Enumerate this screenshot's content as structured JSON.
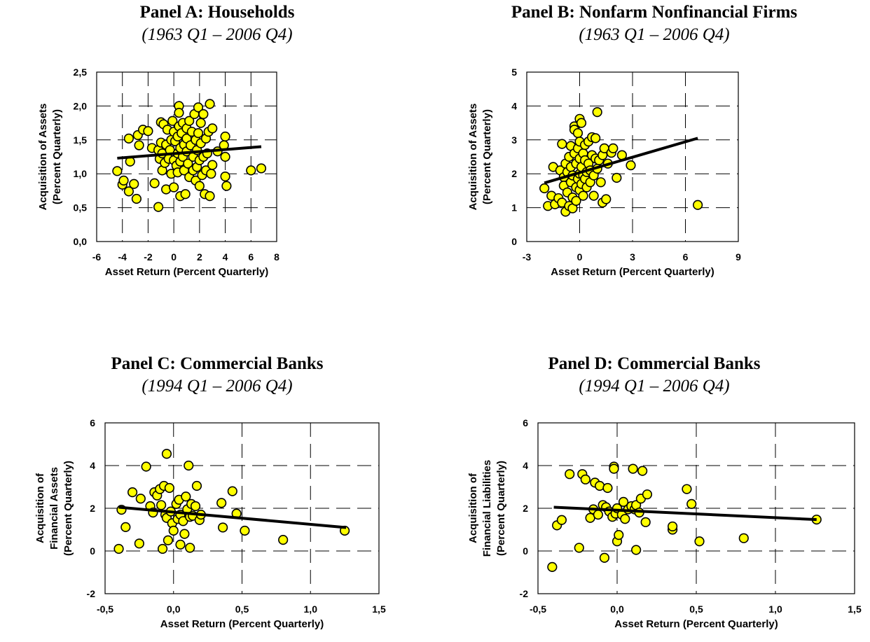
{
  "chart_data": [
    {
      "type": "scatter",
      "title": "Panel A: Households",
      "subtitle": "(1963 Q1 – 2006 Q4)",
      "xlabel": "Asset Return (Percent Quarterly)",
      "ylabel": [
        "Acquisition of Assets",
        "(Percent Quarterly)"
      ],
      "xlim": [
        -6,
        8
      ],
      "ylim": [
        0,
        2.5
      ],
      "xticks": [
        -6,
        -4,
        -2,
        0,
        2,
        4,
        6,
        8
      ],
      "yticks": [
        0,
        0.5,
        1,
        1.5,
        2,
        2.5
      ],
      "xtick_labels": [
        "-6",
        "-4",
        "-2",
        "0",
        "2",
        "4",
        "6",
        "8"
      ],
      "ytick_labels": [
        "0,0",
        "0,5",
        "1,0",
        "1,5",
        "2,0",
        "2,5"
      ],
      "grid": true,
      "trend": [
        [
          -4.4,
          1.23
        ],
        [
          6.8,
          1.4
        ]
      ],
      "points": [
        [
          -4.4,
          1.04
        ],
        [
          -4.0,
          0.84
        ],
        [
          -3.9,
          0.9
        ],
        [
          -3.5,
          1.52
        ],
        [
          -3.4,
          1.18
        ],
        [
          -3.5,
          0.74
        ],
        [
          -3.1,
          0.85
        ],
        [
          -2.9,
          0.63
        ],
        [
          -2.8,
          1.57
        ],
        [
          -2.7,
          1.42
        ],
        [
          -2.4,
          1.65
        ],
        [
          -2.0,
          1.63
        ],
        [
          -1.7,
          1.38
        ],
        [
          -1.5,
          0.86
        ],
        [
          -1.2,
          0.51
        ],
        [
          -1.2,
          1.35
        ],
        [
          -1.1,
          1.22
        ],
        [
          -1.0,
          1.46
        ],
        [
          -1.0,
          1.76
        ],
        [
          -0.9,
          1.3
        ],
        [
          -0.9,
          1.05
        ],
        [
          -0.8,
          1.73
        ],
        [
          -0.7,
          1.16
        ],
        [
          -0.6,
          0.77
        ],
        [
          -0.6,
          1.43
        ],
        [
          -0.5,
          1.65
        ],
        [
          -0.4,
          1.22
        ],
        [
          -0.3,
          1.35
        ],
        [
          -0.2,
          1.5
        ],
        [
          -0.2,
          1.0
        ],
        [
          -0.1,
          1.78
        ],
        [
          0.0,
          1.2
        ],
        [
          0.0,
          1.62
        ],
        [
          0.0,
          0.8
        ],
        [
          0.1,
          1.48
        ],
        [
          0.2,
          1.12
        ],
        [
          0.3,
          1.55
        ],
        [
          0.3,
          1.3
        ],
        [
          0.3,
          1.02
        ],
        [
          0.4,
          1.7
        ],
        [
          0.4,
          2.0
        ],
        [
          0.4,
          1.9
        ],
        [
          0.5,
          1.38
        ],
        [
          0.5,
          1.18
        ],
        [
          0.5,
          0.67
        ],
        [
          0.6,
          1.6
        ],
        [
          0.7,
          1.75
        ],
        [
          0.7,
          1.25
        ],
        [
          0.8,
          1.43
        ],
        [
          0.8,
          1.05
        ],
        [
          0.9,
          0.7
        ],
        [
          1.0,
          1.67
        ],
        [
          1.0,
          1.33
        ],
        [
          1.0,
          1.52
        ],
        [
          1.1,
          1.15
        ],
        [
          1.2,
          1.78
        ],
        [
          1.2,
          0.95
        ],
        [
          1.3,
          1.42
        ],
        [
          1.4,
          1.62
        ],
        [
          1.5,
          1.25
        ],
        [
          1.5,
          1.05
        ],
        [
          1.6,
          1.88
        ],
        [
          1.7,
          1.5
        ],
        [
          1.7,
          0.9
        ],
        [
          1.8,
          1.35
        ],
        [
          1.8,
          1.1
        ],
        [
          1.9,
          1.98
        ],
        [
          1.9,
          1.6
        ],
        [
          2.0,
          1.2
        ],
        [
          2.0,
          0.82
        ],
        [
          2.1,
          1.75
        ],
        [
          2.1,
          1.45
        ],
        [
          2.2,
          0.98
        ],
        [
          2.3,
          1.88
        ],
        [
          2.3,
          1.25
        ],
        [
          2.4,
          0.7
        ],
        [
          2.5,
          1.52
        ],
        [
          2.5,
          1.05
        ],
        [
          2.6,
          1.3
        ],
        [
          2.7,
          1.62
        ],
        [
          2.8,
          2.03
        ],
        [
          2.8,
          0.67
        ],
        [
          2.9,
          1.0
        ],
        [
          3.0,
          1.67
        ],
        [
          3.0,
          1.13
        ],
        [
          3.4,
          1.33
        ],
        [
          3.9,
          1.42
        ],
        [
          4.0,
          1.55
        ],
        [
          4.0,
          1.25
        ],
        [
          4.0,
          0.96
        ],
        [
          4.1,
          0.82
        ],
        [
          6.0,
          1.05
        ],
        [
          6.8,
          1.08
        ]
      ]
    },
    {
      "type": "scatter",
      "title": "Panel B: Nonfarm Nonfinancial Firms",
      "subtitle": "(1963 Q1 – 2006 Q4)",
      "xlabel": "Asset Return (Percent Quarterly)",
      "ylabel": [
        "Acquisition of Assets",
        "(Percent Quarterly)"
      ],
      "xlim": [
        -3,
        9
      ],
      "ylim": [
        0,
        5
      ],
      "xticks": [
        -3,
        0,
        3,
        6,
        9
      ],
      "yticks": [
        0,
        1,
        2,
        3,
        4,
        5
      ],
      "xtick_labels": [
        "-3",
        "0",
        "3",
        "6",
        "9"
      ],
      "ytick_labels": [
        "0",
        "1",
        "2",
        "3",
        "4",
        "5"
      ],
      "grid": true,
      "trend": [
        [
          -2.0,
          1.73
        ],
        [
          6.7,
          3.05
        ]
      ],
      "points": [
        [
          -2.0,
          1.57
        ],
        [
          -1.8,
          1.05
        ],
        [
          -1.6,
          1.35
        ],
        [
          -1.5,
          2.2
        ],
        [
          -1.4,
          1.1
        ],
        [
          -1.2,
          1.28
        ],
        [
          -1.1,
          2.1
        ],
        [
          -1.0,
          2.88
        ],
        [
          -1.0,
          1.15
        ],
        [
          -0.9,
          1.9
        ],
        [
          -0.9,
          1.65
        ],
        [
          -0.8,
          2.3
        ],
        [
          -0.8,
          0.88
        ],
        [
          -0.7,
          2.05
        ],
        [
          -0.7,
          1.45
        ],
        [
          -0.6,
          2.5
        ],
        [
          -0.6,
          1.05
        ],
        [
          -0.5,
          2.82
        ],
        [
          -0.5,
          2.2
        ],
        [
          -0.5,
          1.75
        ],
        [
          -0.4,
          0.98
        ],
        [
          -0.4,
          1.3
        ],
        [
          -0.4,
          1.95
        ],
        [
          -0.3,
          3.4
        ],
        [
          -0.3,
          3.3
        ],
        [
          -0.3,
          2.6
        ],
        [
          -0.2,
          1.6
        ],
        [
          -0.2,
          2.3
        ],
        [
          -0.2,
          1.2
        ],
        [
          -0.1,
          3.2
        ],
        [
          -0.1,
          2.75
        ],
        [
          -0.1,
          1.85
        ],
        [
          0.0,
          3.62
        ],
        [
          0.0,
          2.95
        ],
        [
          0.0,
          2.45
        ],
        [
          0.0,
          2.0
        ],
        [
          0.0,
          1.52
        ],
        [
          0.1,
          3.5
        ],
        [
          0.1,
          2.2
        ],
        [
          0.1,
          1.7
        ],
        [
          0.2,
          2.6
        ],
        [
          0.2,
          1.95
        ],
        [
          0.2,
          1.35
        ],
        [
          0.3,
          2.85
        ],
        [
          0.3,
          2.4
        ],
        [
          0.3,
          1.85
        ],
        [
          0.4,
          2.05
        ],
        [
          0.4,
          1.6
        ],
        [
          0.5,
          2.95
        ],
        [
          0.5,
          2.3
        ],
        [
          0.6,
          2.1
        ],
        [
          0.6,
          1.75
        ],
        [
          0.7,
          3.08
        ],
        [
          0.7,
          2.55
        ],
        [
          0.8,
          1.95
        ],
        [
          0.8,
          1.35
        ],
        [
          0.9,
          3.05
        ],
        [
          0.9,
          2.45
        ],
        [
          1.0,
          3.82
        ],
        [
          1.0,
          2.15
        ],
        [
          1.1,
          2.4
        ],
        [
          1.2,
          1.75
        ],
        [
          1.3,
          2.55
        ],
        [
          1.3,
          1.15
        ],
        [
          1.4,
          2.75
        ],
        [
          1.5,
          1.25
        ],
        [
          1.6,
          2.3
        ],
        [
          1.8,
          2.62
        ],
        [
          1.9,
          2.75
        ],
        [
          2.1,
          1.88
        ],
        [
          2.4,
          2.55
        ],
        [
          2.9,
          2.25
        ],
        [
          6.7,
          1.08
        ]
      ]
    },
    {
      "type": "scatter",
      "title": "Panel C: Commercial Banks",
      "subtitle": "(1994 Q1 – 2006 Q4)",
      "xlabel": "Asset Return (Percent Quarterly)",
      "ylabel": [
        "Acquisition of",
        "Financial Assets",
        "(Percent Quarterly)"
      ],
      "xlim": [
        -0.5,
        1.5
      ],
      "ylim": [
        -2,
        6
      ],
      "xticks": [
        -0.5,
        0,
        0.5,
        1,
        1.5
      ],
      "yticks": [
        -2,
        0,
        2,
        4,
        6
      ],
      "xtick_labels": [
        "-0,5",
        "0,0",
        "0,5",
        "1,0",
        "1,5"
      ],
      "ytick_labels": [
        "-2",
        "0",
        "2",
        "4",
        "6"
      ],
      "grid": true,
      "trend": [
        [
          -0.4,
          2.05
        ],
        [
          1.26,
          1.1
        ]
      ],
      "points": [
        [
          -0.4,
          0.1
        ],
        [
          -0.38,
          1.93
        ],
        [
          -0.35,
          1.12
        ],
        [
          -0.3,
          2.75
        ],
        [
          -0.25,
          0.35
        ],
        [
          -0.24,
          2.45
        ],
        [
          -0.2,
          3.95
        ],
        [
          -0.17,
          2.1
        ],
        [
          -0.15,
          1.8
        ],
        [
          -0.14,
          2.75
        ],
        [
          -0.12,
          2.6
        ],
        [
          -0.1,
          2.9
        ],
        [
          -0.09,
          2.15
        ],
        [
          -0.08,
          0.1
        ],
        [
          -0.07,
          3.05
        ],
        [
          -0.06,
          1.7
        ],
        [
          -0.05,
          4.55
        ],
        [
          -0.05,
          1.55
        ],
        [
          -0.04,
          0.5
        ],
        [
          -0.03,
          2.95
        ],
        [
          -0.02,
          1.85
        ],
        [
          -0.01,
          1.3
        ],
        [
          0.0,
          0.95
        ],
        [
          0.02,
          2.2
        ],
        [
          0.03,
          1.5
        ],
        [
          0.04,
          2.4
        ],
        [
          0.05,
          1.7
        ],
        [
          0.05,
          0.3
        ],
        [
          0.07,
          1.4
        ],
        [
          0.08,
          0.8
        ],
        [
          0.09,
          2.55
        ],
        [
          0.1,
          1.95
        ],
        [
          0.11,
          4.0
        ],
        [
          0.12,
          1.6
        ],
        [
          0.12,
          0.15
        ],
        [
          0.13,
          2.2
        ],
        [
          0.14,
          1.65
        ],
        [
          0.16,
          2.1
        ],
        [
          0.17,
          3.05
        ],
        [
          0.19,
          1.45
        ],
        [
          0.2,
          1.7
        ],
        [
          0.35,
          2.25
        ],
        [
          0.36,
          1.1
        ],
        [
          0.43,
          2.8
        ],
        [
          0.46,
          1.75
        ],
        [
          0.52,
          0.95
        ],
        [
          0.8,
          0.52
        ],
        [
          1.25,
          0.95
        ]
      ]
    },
    {
      "type": "scatter",
      "title": "Panel D: Commercial Banks",
      "subtitle": "(1994 Q1 – 2006 Q4)",
      "xlabel": "Asset Return (Percent Quarterly)",
      "ylabel": [
        "Acquisition of",
        "Financial Liabilities",
        "(Percent Quarterly)"
      ],
      "xlim": [
        -0.5,
        1.5
      ],
      "ylim": [
        -2,
        6
      ],
      "xticks": [
        -0.5,
        0,
        0.5,
        1,
        1.5
      ],
      "yticks": [
        -2,
        0,
        2,
        4,
        6
      ],
      "xtick_labels": [
        "-0,5",
        "0,0",
        "0,5",
        "1,0",
        "1,5"
      ],
      "ytick_labels": [
        "-2",
        "0",
        "2",
        "4",
        "6"
      ],
      "grid": true,
      "trend": [
        [
          -0.4,
          2.05
        ],
        [
          1.26,
          1.47
        ]
      ],
      "points": [
        [
          -0.41,
          -0.75
        ],
        [
          -0.38,
          1.2
        ],
        [
          -0.35,
          1.45
        ],
        [
          -0.3,
          3.6
        ],
        [
          -0.24,
          0.15
        ],
        [
          -0.22,
          3.6
        ],
        [
          -0.2,
          3.35
        ],
        [
          -0.17,
          1.55
        ],
        [
          -0.15,
          1.95
        ],
        [
          -0.14,
          3.2
        ],
        [
          -0.12,
          1.7
        ],
        [
          -0.11,
          3.05
        ],
        [
          -0.09,
          2.15
        ],
        [
          -0.08,
          -0.32
        ],
        [
          -0.07,
          2.05
        ],
        [
          -0.06,
          2.95
        ],
        [
          -0.05,
          1.85
        ],
        [
          -0.03,
          1.6
        ],
        [
          -0.02,
          3.95
        ],
        [
          -0.02,
          3.85
        ],
        [
          -0.01,
          1.75
        ],
        [
          0.0,
          0.45
        ],
        [
          0.0,
          2.0
        ],
        [
          0.01,
          0.75
        ],
        [
          0.03,
          1.7
        ],
        [
          0.04,
          2.3
        ],
        [
          0.05,
          1.5
        ],
        [
          0.07,
          1.95
        ],
        [
          0.09,
          2.1
        ],
        [
          0.1,
          3.85
        ],
        [
          0.11,
          1.95
        ],
        [
          0.12,
          0.05
        ],
        [
          0.12,
          2.15
        ],
        [
          0.14,
          1.8
        ],
        [
          0.15,
          2.45
        ],
        [
          0.16,
          3.75
        ],
        [
          0.18,
          1.35
        ],
        [
          0.19,
          2.65
        ],
        [
          0.35,
          1.0
        ],
        [
          0.35,
          1.15
        ],
        [
          0.44,
          2.9
        ],
        [
          0.47,
          2.2
        ],
        [
          0.52,
          0.45
        ],
        [
          0.8,
          0.6
        ],
        [
          1.26,
          1.47
        ]
      ]
    }
  ]
}
